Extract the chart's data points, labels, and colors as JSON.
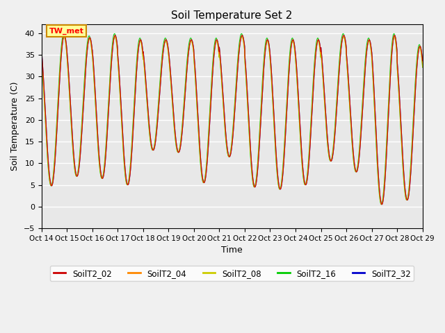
{
  "title": "Soil Temperature Set 2",
  "xlabel": "Time",
  "ylabel": "Soil Temperature (C)",
  "ylim": [
    -5,
    42
  ],
  "yticks": [
    -5,
    0,
    5,
    10,
    15,
    20,
    25,
    30,
    35,
    40
  ],
  "series_names": [
    "SoilT2_02",
    "SoilT2_04",
    "SoilT2_08",
    "SoilT2_16",
    "SoilT2_32"
  ],
  "series_colors": [
    "#cc0000",
    "#ff8800",
    "#cccc00",
    "#00cc00",
    "#0000cc"
  ],
  "xtick_labels": [
    "Oct 14",
    "Oct 15",
    "Oct 16",
    "Oct 17",
    "Oct 18",
    "Oct 19",
    "Oct 20",
    "Oct 21",
    "Oct 22",
    "Oct 23",
    "Oct 24",
    "Oct 25",
    "Oct 26",
    "Oct 27",
    "Oct 28",
    "Oct 29"
  ],
  "annotation_text": "TW_met",
  "plot_bg_color": "#e8e8e8",
  "fig_bg_color": "#f0f0f0",
  "grid_color": "#ffffff",
  "n_points": 2000,
  "day_start": 14,
  "n_days": 15,
  "peaks": [
    39.5,
    39.0,
    39.5,
    38.5,
    38.5,
    38.5,
    38.5,
    39.5,
    38.5,
    38.5,
    38.5,
    39.5,
    38.5,
    39.5,
    37.0
  ],
  "valleys": [
    4.8,
    7.0,
    6.5,
    5.0,
    13.0,
    12.5,
    5.5,
    11.5,
    4.5,
    4.0,
    5.0,
    10.5,
    8.0,
    0.5,
    1.5
  ],
  "phase_shifts": [
    0.0,
    0.008,
    0.016,
    0.025,
    0.0
  ],
  "amp_scales": [
    1.0,
    1.0,
    0.99,
    1.01,
    1.0
  ]
}
